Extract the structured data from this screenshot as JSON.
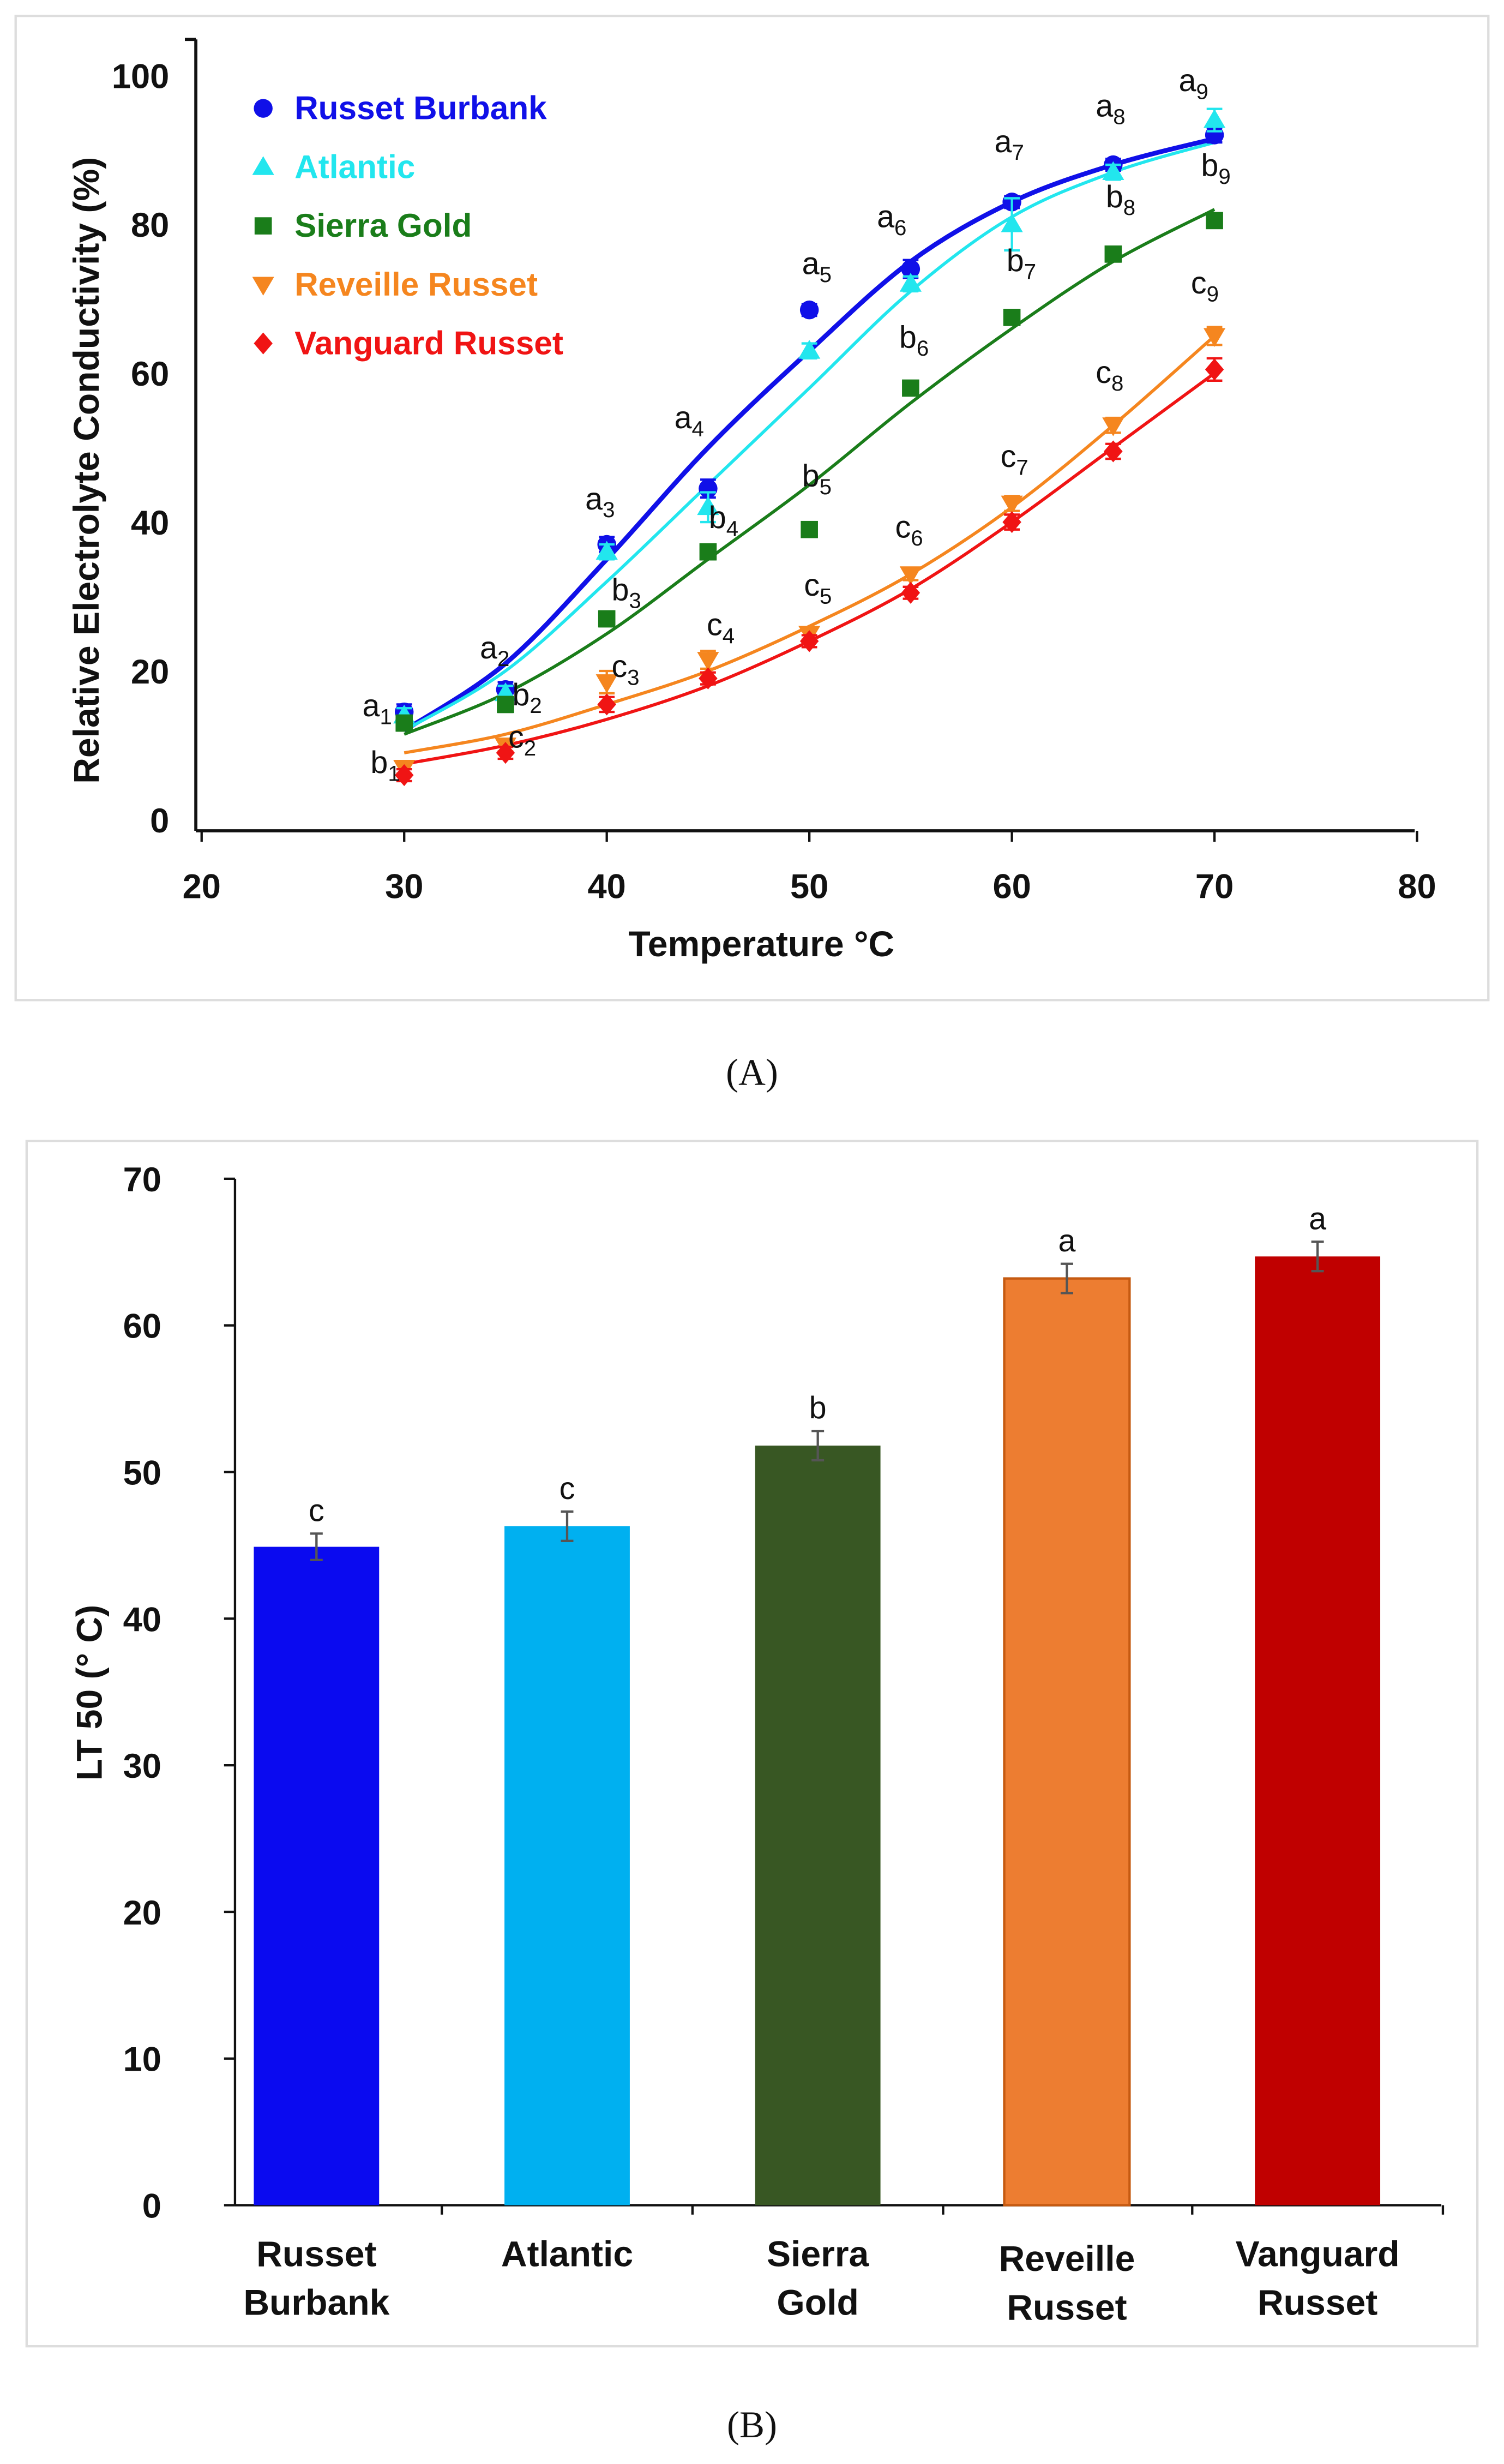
{
  "chart_data": [
    {
      "panel": "(A)",
      "type": "scatter",
      "xlabel": "Temperature °C",
      "ylabel": "Relative Electrolyte Conductivity (%)",
      "xlim": [
        20,
        80
      ],
      "ylim": [
        0,
        100
      ],
      "xticks": [
        20,
        30,
        40,
        50,
        60,
        70,
        80
      ],
      "yticks": [
        0,
        20,
        40,
        60,
        80,
        100
      ],
      "legend_position": "top-left",
      "x": [
        30,
        35,
        40,
        45,
        50,
        55,
        60,
        65,
        70
      ],
      "series": [
        {
          "name": "Russet Burbank",
          "color": "#1010e8",
          "marker": "circle",
          "values": [
            14.5,
            17.5,
            37,
            44.5,
            68.5,
            74,
            83,
            88,
            92
          ],
          "err": [
            1,
            1,
            1,
            1.2,
            0.8,
            1.2,
            0.8,
            0.8,
            1
          ],
          "fit": [
            12,
            21,
            35,
            50,
            63,
            75,
            83,
            88,
            91.5
          ]
        },
        {
          "name": "Atlantic",
          "color": "#22e6ee",
          "marker": "triangle-up",
          "values": [
            14,
            17,
            36,
            42,
            63,
            72,
            80,
            87,
            94
          ],
          "err": [
            1,
            1,
            1,
            2,
            1,
            1,
            3.5,
            1,
            1.5
          ],
          "fit": [
            12,
            20,
            32,
            45,
            58,
            71,
            81,
            87,
            91
          ]
        },
        {
          "name": "Sierra Gold",
          "color": "#1a7d1a",
          "marker": "square",
          "values": [
            13,
            15.5,
            27,
            36,
            39,
            58,
            67.5,
            76,
            80.5
          ],
          "err": [
            1,
            1,
            1,
            1,
            0.8,
            0.8,
            1,
            1,
            0.8
          ],
          "fit": [
            11.5,
            17,
            25,
            35,
            45,
            56,
            66,
            75,
            82
          ]
        },
        {
          "name": "Reveille Russet",
          "color": "#f5861f",
          "marker": "triangle-down",
          "values": [
            7,
            10,
            18.5,
            21.5,
            25,
            33,
            42.5,
            53,
            65
          ],
          "err": [
            0.8,
            0.8,
            1.5,
            1.2,
            0.8,
            0.8,
            1,
            1,
            1.2
          ],
          "fit": [
            9,
            11.5,
            15.5,
            20,
            26,
            33,
            42,
            53,
            65
          ]
        },
        {
          "name": "Vanguard Russet",
          "color": "#f01414",
          "marker": "diamond",
          "values": [
            6,
            9,
            15.5,
            19,
            24,
            30.5,
            40,
            49.5,
            60.5
          ],
          "err": [
            0.8,
            0.8,
            1,
            0.8,
            0.8,
            0.8,
            1,
            1,
            1.5
          ],
          "fit": [
            7.5,
            10,
            13.5,
            18,
            24,
            31,
            40,
            50,
            60
          ]
        }
      ],
      "annotations": [
        {
          "letter": "a",
          "sub": "1",
          "x": 28.4,
          "y": 13.9
        },
        {
          "letter": "b",
          "sub": "1",
          "x": 28.8,
          "y": 6.3
        },
        {
          "letter": "a",
          "sub": "2",
          "x": 34.2,
          "y": 21.7
        },
        {
          "letter": "b",
          "sub": "2",
          "x": 35.8,
          "y": 15.4
        },
        {
          "letter": "c",
          "sub": "2",
          "x": 35.6,
          "y": 9.7
        },
        {
          "letter": "a",
          "sub": "3",
          "x": 39.4,
          "y": 41.7
        },
        {
          "letter": "b",
          "sub": "3",
          "x": 40.7,
          "y": 29.5
        },
        {
          "letter": "c",
          "sub": "3",
          "x": 40.7,
          "y": 19.2
        },
        {
          "letter": "a",
          "sub": "4",
          "x": 43.8,
          "y": 52.6
        },
        {
          "letter": "b",
          "sub": "4",
          "x": 45.5,
          "y": 39.2
        },
        {
          "letter": "c",
          "sub": "4",
          "x": 45.4,
          "y": 24.8
        },
        {
          "letter": "a",
          "sub": "5",
          "x": 50.1,
          "y": 73.3
        },
        {
          "letter": "b",
          "sub": "5",
          "x": 50.1,
          "y": 44.8
        },
        {
          "letter": "c",
          "sub": "5",
          "x": 50.2,
          "y": 30.1
        },
        {
          "letter": "a",
          "sub": "6",
          "x": 53.8,
          "y": 79.6
        },
        {
          "letter": "b",
          "sub": "6",
          "x": 54.9,
          "y": 63.4
        },
        {
          "letter": "c",
          "sub": "6",
          "x": 54.7,
          "y": 37.9
        },
        {
          "letter": "a",
          "sub": "7",
          "x": 59.6,
          "y": 89.7
        },
        {
          "letter": "b",
          "sub": "7",
          "x": 60.2,
          "y": 73.7
        },
        {
          "letter": "c",
          "sub": "7",
          "x": 59.9,
          "y": 47.4
        },
        {
          "letter": "a",
          "sub": "8",
          "x": 64.6,
          "y": 94.5
        },
        {
          "letter": "b",
          "sub": "8",
          "x": 65.1,
          "y": 82.3
        },
        {
          "letter": "c",
          "sub": "8",
          "x": 64.6,
          "y": 58.7
        },
        {
          "letter": "a",
          "sub": "9",
          "x": 68.7,
          "y": 97.9
        },
        {
          "letter": "b",
          "sub": "9",
          "x": 69.8,
          "y": 86.5
        },
        {
          "letter": "c",
          "sub": "9",
          "x": 69.3,
          "y": 70.7
        }
      ]
    },
    {
      "panel": "(B)",
      "type": "bar",
      "xlabel": "",
      "ylabel": "LT 50 (° C)",
      "ylim": [
        0,
        70
      ],
      "yticks": [
        0,
        10,
        20,
        30,
        40,
        50,
        60,
        70
      ],
      "categories": [
        [
          "Russet",
          "Burbank"
        ],
        [
          "Atlantic"
        ],
        [
          "Sierra",
          "Gold"
        ],
        [
          "Reveille",
          "Russet"
        ],
        [
          "Vanguard",
          "Russet"
        ]
      ],
      "values": [
        44.9,
        46.3,
        51.8,
        63.2,
        64.7
      ],
      "err": [
        0.9,
        1.0,
        1.0,
        1.0,
        1.0
      ],
      "letters": [
        "c",
        "c",
        "b",
        "a",
        "a"
      ],
      "colors": [
        "#0a0af0",
        "#00b0f0",
        "#385723",
        "#ed7d31",
        "#c00000"
      ]
    }
  ]
}
